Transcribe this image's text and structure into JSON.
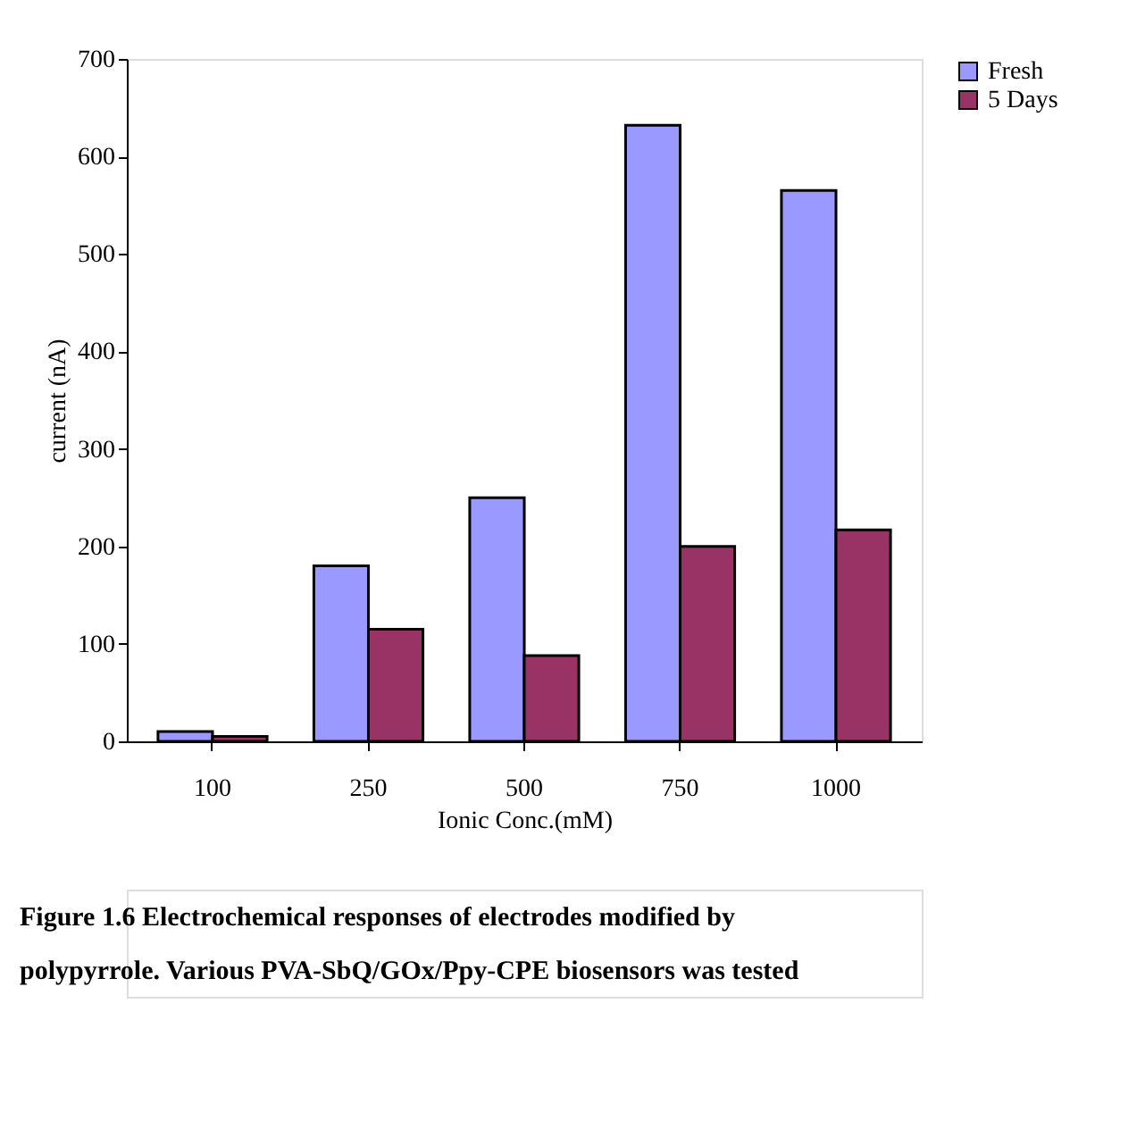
{
  "chart_data": {
    "type": "bar",
    "xlabel": "Ionic Conc.(mM)",
    "ylabel": "current (nA)",
    "categories": [
      "100",
      "250",
      "500",
      "750",
      "1000"
    ],
    "series": [
      {
        "name": "Fresh",
        "color": "#9999ff",
        "values": [
          10,
          180,
          250,
          632,
          565
        ]
      },
      {
        "name": "5 Days",
        "color": "#993366",
        "values": [
          5,
          115,
          88,
          200,
          217
        ]
      }
    ],
    "ylim": [
      0,
      700
    ],
    "yticks": [
      0,
      100,
      200,
      300,
      400,
      500,
      600,
      700
    ],
    "grid": false,
    "legend": "right",
    "annotations": [
      "Figure 1.6 Electrochemical responses of electrodes modified by",
      "polypyrrole. Various PVA-SbQ/GOx/Ppy-CPE biosensors was tested"
    ]
  }
}
